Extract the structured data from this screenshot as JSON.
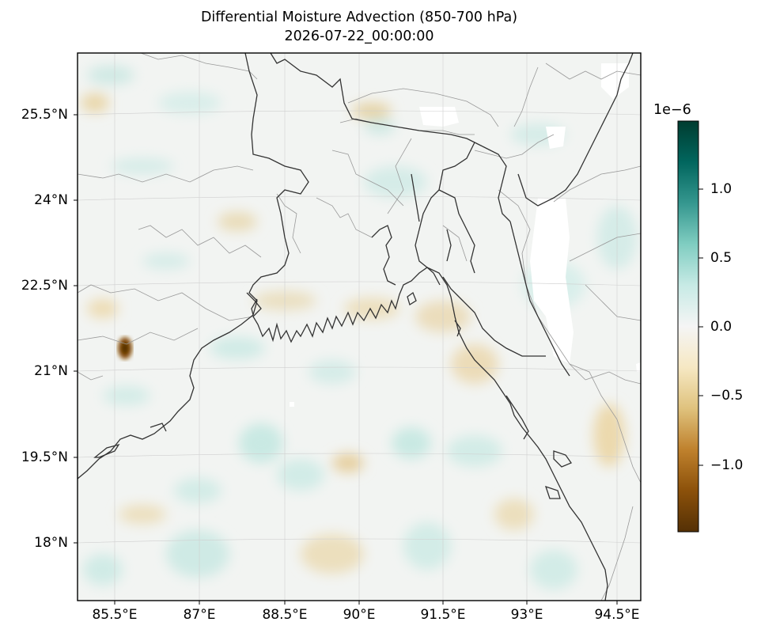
{
  "title_line1": "Differential Moisture Advection (850-700 hPa)",
  "title_line2": "2026-07-22_00:00:00",
  "colormap": [
    "#543005",
    "#8c510a",
    "#bf812d",
    "#dfc27d",
    "#f6e8c3",
    "#f5f5f5",
    "#c7eae5",
    "#80cdc1",
    "#35978f",
    "#01665e",
    "#003c30"
  ],
  "map": {
    "lon_range": [
      84.5,
      95.2
    ],
    "lat_range": [
      16.9,
      26.6
    ],
    "x_ticks": [
      "85.5°E",
      "87°E",
      "88.5°E",
      "90°E",
      "91.5°E",
      "93°E",
      "94.5°E"
    ],
    "y_ticks": [
      "18°N",
      "19.5°N",
      "21°N",
      "22.5°N",
      "24°N",
      "25.5°N"
    ],
    "gridlines": true,
    "coastline_color": "#333333",
    "border_color": "#999999"
  },
  "colorbar": {
    "exponent_label": "1e−6",
    "tick_labels": [
      "1.0",
      "0.5",
      "0.0",
      "−0.5",
      "−1.0"
    ],
    "range": [
      -1.5,
      1.5
    ]
  }
}
